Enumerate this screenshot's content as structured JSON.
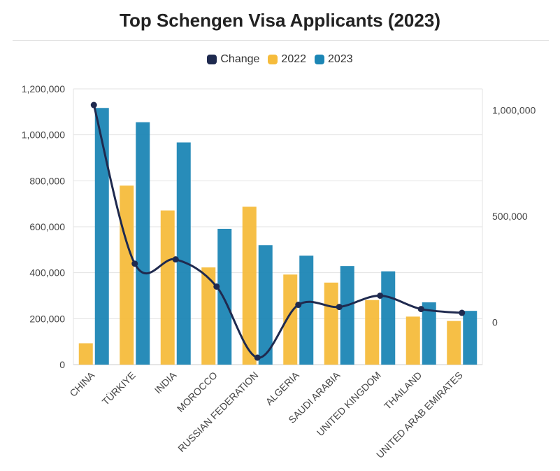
{
  "chart_data": {
    "type": "bar",
    "title": "Top Schengen Visa Applicants (2023)",
    "categories": [
      "CHINA",
      "TÜRKIYE",
      "INDIA",
      "MOROCCO",
      "RUSSIAN FEDERATION",
      "ALGERIA",
      "SAUDI ARABIA",
      "UNITED KINGDOM",
      "THAILAND",
      "UNITED ARAB EMIRATES"
    ],
    "series": [
      {
        "name": "2022",
        "axis": "left",
        "kind": "bar",
        "color": "#f6bc3c",
        "values": [
          93000,
          779000,
          671000,
          423000,
          687000,
          392000,
          357000,
          281000,
          209000,
          190000
        ]
      },
      {
        "name": "2023",
        "axis": "left",
        "kind": "bar",
        "color": "#1c86b5",
        "values": [
          1117000,
          1055000,
          967000,
          591000,
          520000,
          474000,
          429000,
          406000,
          271000,
          234000
        ]
      },
      {
        "name": "Change",
        "axis": "right",
        "kind": "line",
        "color": "#1f2a4f",
        "values": [
          1024000,
          276000,
          296000,
          168000,
          -167000,
          82000,
          72000,
          125000,
          62000,
          44000
        ]
      }
    ],
    "ylim": [
      0,
      1200000
    ],
    "yticks": [
      "0",
      "200,000",
      "400,000",
      "600,000",
      "800,000",
      "1,000,000",
      "1,200,000"
    ],
    "y2lim": [
      -200000,
      1100000
    ],
    "y2ticks": [
      "0",
      "500,000",
      "1,000,000"
    ],
    "xlabel": "",
    "ylabel": "",
    "grid": true,
    "legend": {
      "position": "top",
      "items": [
        {
          "label": "Change",
          "color": "#1f2a4f"
        },
        {
          "label": "2022",
          "color": "#f6bc3c"
        },
        {
          "label": "2023",
          "color": "#1c86b5"
        }
      ]
    }
  }
}
